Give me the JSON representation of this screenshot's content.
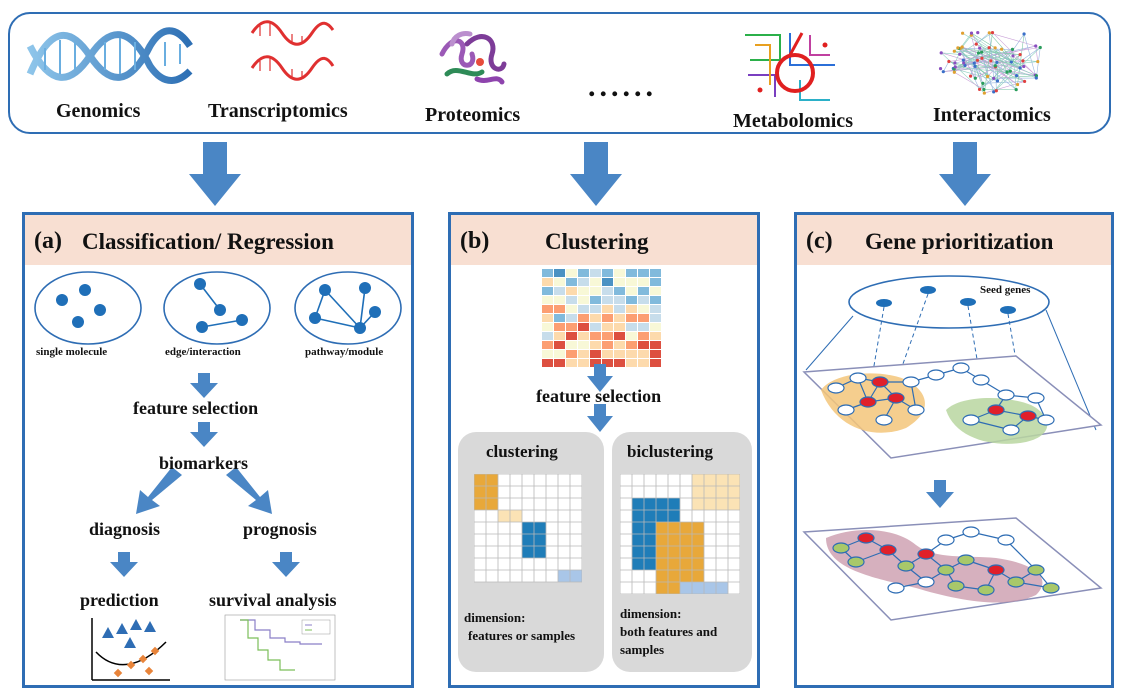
{
  "omics": {
    "genomics": "Genomics",
    "transcriptomics": "Transcriptomics",
    "proteomics": "Proteomics",
    "ellipsis": "......",
    "metabolomics": "Metabolomics",
    "interactomics": "Interactomics"
  },
  "panel_a": {
    "letter": "(a)",
    "title": "Classification/ Regression",
    "single_molecule": "single molecule",
    "edge_interaction": "edge/interaction",
    "pathway_module": "pathway/module",
    "feature_selection": "feature selection",
    "biomarkers": "biomarkers",
    "diagnosis": "diagnosis",
    "prognosis": "prognosis",
    "prediction": "prediction",
    "survival_analysis": "survival analysis"
  },
  "panel_b": {
    "letter": "(b)",
    "title": "Clustering",
    "feature_selection": "feature selection",
    "clustering": "clustering",
    "biclustering": "biclustering",
    "clustering_dim_1": "dimension:",
    "clustering_dim_2": "features or samples",
    "biclustering_dim_1": "dimension:",
    "biclustering_dim_2": "both features and",
    "biclustering_dim_3": "samples"
  },
  "panel_c": {
    "letter": "(c)",
    "title": "Gene prioritization",
    "seed_genes": "Seed genes"
  },
  "colors": {
    "border_blue": "#2e6db4",
    "arrow_blue": "#4a86c5",
    "node_blue": "#1f6fb8",
    "header_peach": "#f8dfd2",
    "orange": "#e8a83a",
    "teal": "#1f7db8",
    "seed_red": "#e0202a",
    "light_green": "#a8c86a"
  }
}
